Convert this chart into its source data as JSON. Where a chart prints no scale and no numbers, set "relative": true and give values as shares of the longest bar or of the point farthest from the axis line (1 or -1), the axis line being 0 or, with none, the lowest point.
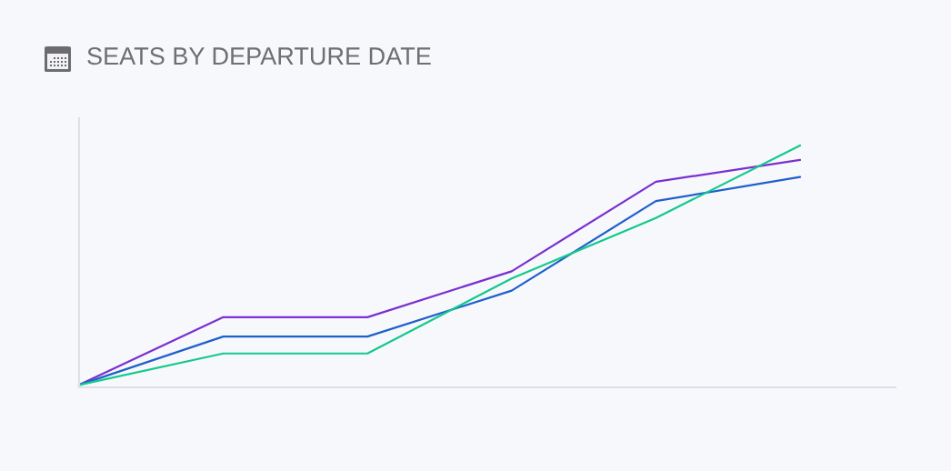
{
  "chart_data": {
    "type": "line",
    "title": "SEATS BY DEPARTURE DATE",
    "categories": [
      null,
      null,
      null,
      null,
      null,
      null
    ],
    "relative": true,
    "series": [
      {
        "color": "#7a30d0",
        "values": [
          0.01,
          0.29,
          0.29,
          0.48,
          0.85,
          0.94
        ]
      },
      {
        "color": "#1f60cc",
        "values": [
          0.01,
          0.21,
          0.21,
          0.4,
          0.77,
          0.87
        ]
      },
      {
        "color": "#14c98c",
        "values": [
          0.01,
          0.14,
          0.14,
          0.45,
          0.7,
          1.0
        ]
      }
    ]
  }
}
